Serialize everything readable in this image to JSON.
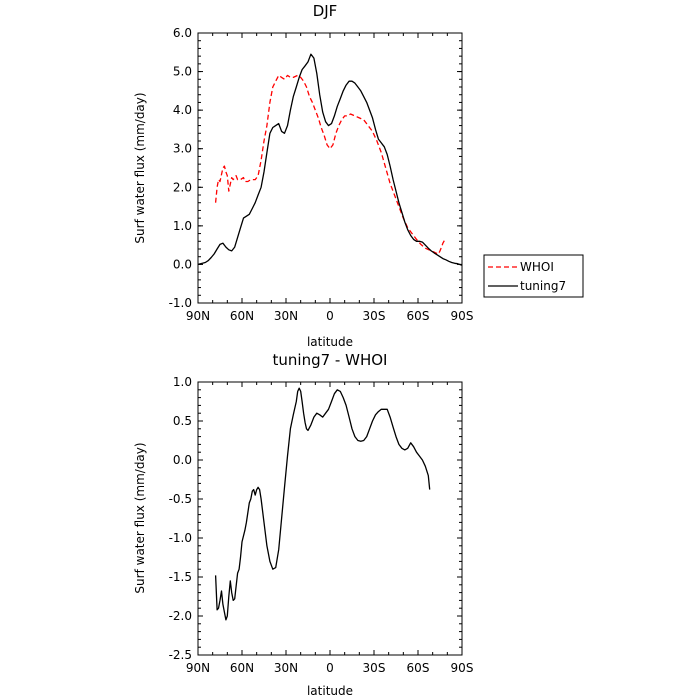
{
  "chart_data": [
    {
      "type": "line",
      "title": "DJF",
      "xlabel": "latitude",
      "ylabel": "Surf water flux (mm/day)",
      "xlim": [
        90,
        -90
      ],
      "ylim": [
        -1.0,
        6.0
      ],
      "xticks": [
        {
          "value": 90,
          "label": "90N"
        },
        {
          "value": 60,
          "label": "60N"
        },
        {
          "value": 30,
          "label": "30N"
        },
        {
          "value": 0,
          "label": "0"
        },
        {
          "value": -30,
          "label": "30S"
        },
        {
          "value": -60,
          "label": "60S"
        },
        {
          "value": -90,
          "label": "90S"
        }
      ],
      "yticks": [
        "-1.0",
        "0.0",
        "1.0",
        "2.0",
        "3.0",
        "4.0",
        "5.0",
        "6.0"
      ],
      "legend": {
        "placement": "right",
        "entries": [
          "WHOI",
          "tuning7"
        ]
      },
      "series": [
        {
          "name": "WHOI",
          "color": "#ff0000",
          "dash": "dashed",
          "points": [
            [
              78,
              1.6
            ],
            [
              77,
              2.0
            ],
            [
              76,
              2.2
            ],
            [
              75,
              2.15
            ],
            [
              73,
              2.5
            ],
            [
              72,
              2.55
            ],
            [
              71,
              2.4
            ],
            [
              70,
              2.3
            ],
            [
              69,
              1.9
            ],
            [
              67,
              2.25
            ],
            [
              66,
              2.2
            ],
            [
              64,
              2.3
            ],
            [
              63,
              2.2
            ],
            [
              61,
              2.2
            ],
            [
              59,
              2.25
            ],
            [
              58,
              2.15
            ],
            [
              56,
              2.15
            ],
            [
              54,
              2.2
            ],
            [
              51,
              2.2
            ],
            [
              49,
              2.3
            ],
            [
              47,
              2.7
            ],
            [
              45,
              3.2
            ],
            [
              43,
              3.6
            ],
            [
              41,
              4.2
            ],
            [
              39,
              4.6
            ],
            [
              37,
              4.75
            ],
            [
              35,
              4.9
            ],
            [
              33,
              4.85
            ],
            [
              31,
              4.8
            ],
            [
              29,
              4.9
            ],
            [
              27,
              4.85
            ],
            [
              25,
              4.85
            ],
            [
              22,
              4.9
            ],
            [
              20,
              4.85
            ],
            [
              18,
              4.75
            ],
            [
              16,
              4.6
            ],
            [
              14,
              4.35
            ],
            [
              12,
              4.2
            ],
            [
              10,
              4.0
            ],
            [
              8,
              3.8
            ],
            [
              6,
              3.55
            ],
            [
              4,
              3.35
            ],
            [
              2,
              3.1
            ],
            [
              0,
              3.0
            ],
            [
              -2,
              3.1
            ],
            [
              -4,
              3.4
            ],
            [
              -6,
              3.6
            ],
            [
              -8,
              3.75
            ],
            [
              -10,
              3.85
            ],
            [
              -12,
              3.85
            ],
            [
              -14,
              3.9
            ],
            [
              -17,
              3.85
            ],
            [
              -20,
              3.8
            ],
            [
              -23,
              3.75
            ],
            [
              -26,
              3.6
            ],
            [
              -29,
              3.45
            ],
            [
              -32,
              3.2
            ],
            [
              -35,
              2.9
            ],
            [
              -38,
              2.5
            ],
            [
              -41,
              2.1
            ],
            [
              -44,
              1.8
            ],
            [
              -47,
              1.5
            ],
            [
              -50,
              1.2
            ],
            [
              -53,
              0.95
            ],
            [
              -56,
              0.8
            ],
            [
              -59,
              0.65
            ],
            [
              -62,
              0.52
            ],
            [
              -65,
              0.42
            ],
            [
              -68,
              0.37
            ],
            [
              -71,
              0.32
            ],
            [
              -73,
              0.28
            ],
            [
              -74,
              0.27
            ],
            [
              -75,
              0.35
            ],
            [
              -76,
              0.45
            ],
            [
              -77,
              0.55
            ],
            [
              -78,
              0.62
            ]
          ]
        },
        {
          "name": "tuning7",
          "color": "#000000",
          "dash": "solid",
          "points": [
            [
              90,
              0.0
            ],
            [
              87,
              0.03
            ],
            [
              85,
              0.05
            ],
            [
              83,
              0.1
            ],
            [
              81,
              0.18
            ],
            [
              79,
              0.27
            ],
            [
              77,
              0.4
            ],
            [
              75,
              0.52
            ],
            [
              73,
              0.55
            ],
            [
              71,
              0.45
            ],
            [
              69,
              0.38
            ],
            [
              67,
              0.35
            ],
            [
              65,
              0.45
            ],
            [
              63,
              0.7
            ],
            [
              61,
              0.95
            ],
            [
              59,
              1.2
            ],
            [
              57,
              1.25
            ],
            [
              55,
              1.3
            ],
            [
              53,
              1.45
            ],
            [
              51,
              1.6
            ],
            [
              49,
              1.8
            ],
            [
              47,
              2.0
            ],
            [
              45,
              2.4
            ],
            [
              43,
              2.9
            ],
            [
              41,
              3.4
            ],
            [
              39,
              3.55
            ],
            [
              37,
              3.6
            ],
            [
              35,
              3.65
            ],
            [
              33,
              3.45
            ],
            [
              31,
              3.4
            ],
            [
              29,
              3.6
            ],
            [
              27,
              4.0
            ],
            [
              25,
              4.35
            ],
            [
              23,
              4.6
            ],
            [
              21,
              4.85
            ],
            [
              19,
              5.05
            ],
            [
              17,
              5.15
            ],
            [
              15,
              5.25
            ],
            [
              13,
              5.45
            ],
            [
              11,
              5.35
            ],
            [
              9,
              4.95
            ],
            [
              7,
              4.4
            ],
            [
              5,
              3.95
            ],
            [
              3,
              3.7
            ],
            [
              1,
              3.6
            ],
            [
              -1,
              3.65
            ],
            [
              -3,
              3.85
            ],
            [
              -5,
              4.1
            ],
            [
              -7,
              4.3
            ],
            [
              -9,
              4.5
            ],
            [
              -11,
              4.65
            ],
            [
              -13,
              4.75
            ],
            [
              -15,
              4.75
            ],
            [
              -17,
              4.7
            ],
            [
              -19,
              4.6
            ],
            [
              -21,
              4.5
            ],
            [
              -23,
              4.35
            ],
            [
              -25,
              4.2
            ],
            [
              -27,
              4.0
            ],
            [
              -29,
              3.8
            ],
            [
              -31,
              3.5
            ],
            [
              -33,
              3.25
            ],
            [
              -35,
              3.15
            ],
            [
              -37,
              3.05
            ],
            [
              -39,
              2.85
            ],
            [
              -41,
              2.55
            ],
            [
              -43,
              2.2
            ],
            [
              -45,
              1.9
            ],
            [
              -47,
              1.6
            ],
            [
              -49,
              1.35
            ],
            [
              -51,
              1.1
            ],
            [
              -53,
              0.9
            ],
            [
              -55,
              0.75
            ],
            [
              -57,
              0.65
            ],
            [
              -59,
              0.6
            ],
            [
              -61,
              0.6
            ],
            [
              -63,
              0.58
            ],
            [
              -65,
              0.5
            ],
            [
              -67,
              0.42
            ],
            [
              -69,
              0.35
            ],
            [
              -71,
              0.3
            ],
            [
              -73,
              0.25
            ],
            [
              -75,
              0.2
            ],
            [
              -77,
              0.15
            ],
            [
              -79,
              0.12
            ],
            [
              -81,
              0.08
            ],
            [
              -83,
              0.05
            ],
            [
              -85,
              0.03
            ],
            [
              -87,
              0.02
            ],
            [
              -90,
              -0.02
            ]
          ]
        }
      ]
    },
    {
      "type": "line",
      "title": "tuning7 - WHOI",
      "xlabel": "latitude",
      "ylabel": "Surf water flux (mm/day)",
      "xlim": [
        90,
        -90
      ],
      "ylim": [
        -2.5,
        1.0
      ],
      "xticks": [
        {
          "value": 90,
          "label": "90N"
        },
        {
          "value": 60,
          "label": "60N"
        },
        {
          "value": 30,
          "label": "30N"
        },
        {
          "value": 0,
          "label": "0"
        },
        {
          "value": -30,
          "label": "30S"
        },
        {
          "value": -60,
          "label": "60S"
        },
        {
          "value": -90,
          "label": "90S"
        }
      ],
      "yticks": [
        "-2.5",
        "-2.0",
        "-1.5",
        "-1.0",
        "-0.5",
        "0.0",
        "0.5",
        "1.0"
      ],
      "series": [
        {
          "color": "#000000",
          "dash": "solid",
          "points": [
            [
              78,
              -1.48
            ],
            [
              77,
              -1.92
            ],
            [
              76,
              -1.9
            ],
            [
              75,
              -1.8
            ],
            [
              74,
              -1.68
            ],
            [
              73,
              -1.85
            ],
            [
              72,
              -1.95
            ],
            [
              71,
              -2.05
            ],
            [
              70,
              -2.0
            ],
            [
              69,
              -1.75
            ],
            [
              68,
              -1.55
            ],
            [
              67,
              -1.7
            ],
            [
              66,
              -1.8
            ],
            [
              65,
              -1.78
            ],
            [
              63,
              -1.45
            ],
            [
              62,
              -1.4
            ],
            [
              61,
              -1.25
            ],
            [
              60,
              -1.05
            ],
            [
              58,
              -0.9
            ],
            [
              57,
              -0.8
            ],
            [
              55,
              -0.55
            ],
            [
              54,
              -0.5
            ],
            [
              53,
              -0.4
            ],
            [
              52,
              -0.38
            ],
            [
              51,
              -0.45
            ],
            [
              50,
              -0.38
            ],
            [
              49,
              -0.35
            ],
            [
              48,
              -0.38
            ],
            [
              47,
              -0.5
            ],
            [
              45,
              -0.8
            ],
            [
              43,
              -1.1
            ],
            [
              41,
              -1.3
            ],
            [
              39,
              -1.4
            ],
            [
              37,
              -1.38
            ],
            [
              35,
              -1.15
            ],
            [
              33,
              -0.75
            ],
            [
              31,
              -0.35
            ],
            [
              29,
              0.05
            ],
            [
              27,
              0.4
            ],
            [
              25,
              0.58
            ],
            [
              23,
              0.75
            ],
            [
              22,
              0.88
            ],
            [
              21,
              0.92
            ],
            [
              20,
              0.88
            ],
            [
              19,
              0.75
            ],
            [
              18,
              0.6
            ],
            [
              17,
              0.48
            ],
            [
              16,
              0.4
            ],
            [
              15,
              0.38
            ],
            [
              13,
              0.45
            ],
            [
              11,
              0.55
            ],
            [
              9,
              0.6
            ],
            [
              7,
              0.58
            ],
            [
              5,
              0.55
            ],
            [
              3,
              0.6
            ],
            [
              1,
              0.65
            ],
            [
              -1,
              0.75
            ],
            [
              -3,
              0.85
            ],
            [
              -5,
              0.9
            ],
            [
              -7,
              0.88
            ],
            [
              -9,
              0.8
            ],
            [
              -11,
              0.7
            ],
            [
              -13,
              0.55
            ],
            [
              -15,
              0.4
            ],
            [
              -17,
              0.3
            ],
            [
              -19,
              0.25
            ],
            [
              -21,
              0.24
            ],
            [
              -23,
              0.25
            ],
            [
              -25,
              0.3
            ],
            [
              -27,
              0.4
            ],
            [
              -29,
              0.5
            ],
            [
              -31,
              0.58
            ],
            [
              -33,
              0.62
            ],
            [
              -35,
              0.65
            ],
            [
              -37,
              0.65
            ],
            [
              -39,
              0.65
            ],
            [
              -41,
              0.55
            ],
            [
              -43,
              0.42
            ],
            [
              -45,
              0.3
            ],
            [
              -47,
              0.2
            ],
            [
              -49,
              0.15
            ],
            [
              -51,
              0.13
            ],
            [
              -53,
              0.15
            ],
            [
              -55,
              0.22
            ],
            [
              -57,
              0.17
            ],
            [
              -59,
              0.1
            ],
            [
              -61,
              0.05
            ],
            [
              -63,
              0.0
            ],
            [
              -65,
              -0.08
            ],
            [
              -67,
              -0.2
            ],
            [
              -68,
              -0.38
            ]
          ]
        }
      ]
    }
  ]
}
